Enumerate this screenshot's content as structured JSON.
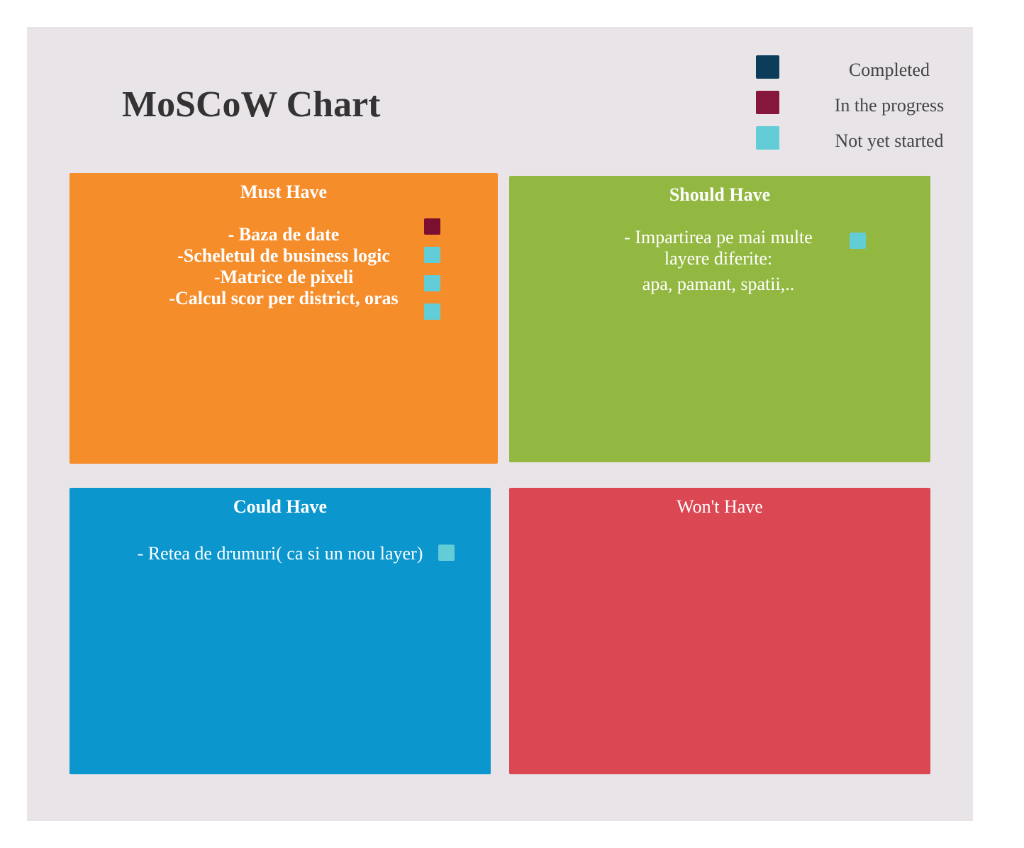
{
  "title": "MoSCoW Chart",
  "colors": {
    "completed": "#0b3d5a",
    "in_progress": "#86163c",
    "not_started": "#62ccd7",
    "must": "#f68d2b",
    "should": "#93b841",
    "could": "#0b97ce",
    "wont": "#db4753"
  },
  "legend": [
    {
      "label": "Completed",
      "color": "#0b3d5a"
    },
    {
      "label": "In the progress",
      "color": "#86163c"
    },
    {
      "label": "Not yet started",
      "color": "#62ccd7"
    }
  ],
  "quadrants": {
    "must": {
      "title": "Must Have",
      "lines": [
        "- Baza de date",
        "-Scheletul de business logic",
        "-Matrice de pixeli",
        "-Calcul scor per district, oras"
      ],
      "statuses": [
        "in_progress",
        "not_started",
        "not_started",
        "not_started"
      ]
    },
    "should": {
      "title": "Should Have",
      "lines": [
        "- Impartirea pe mai multe",
        "layere diferite:",
        "apa, pamant, spatii,.."
      ],
      "statuses": [
        "not_started"
      ]
    },
    "could": {
      "title": "Could Have",
      "lines": [
        "- Retea de drumuri( ca si un nou layer)"
      ],
      "statuses": [
        "not_started"
      ]
    },
    "wont": {
      "title": "Won't Have",
      "lines": [],
      "statuses": []
    }
  }
}
